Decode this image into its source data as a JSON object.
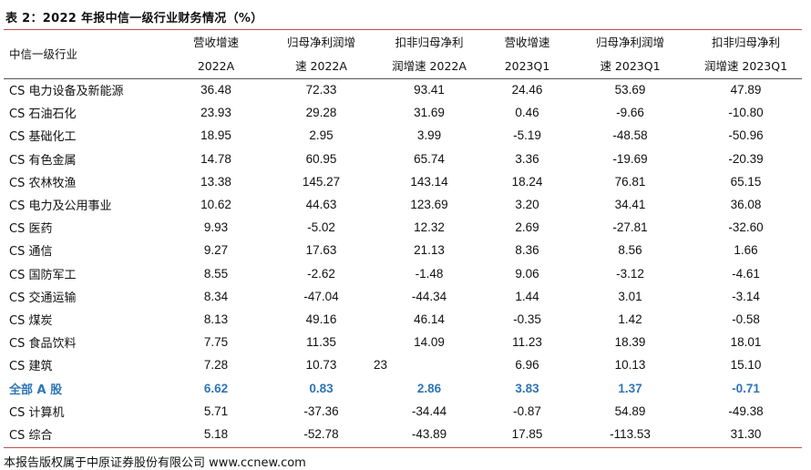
{
  "title": "表 2：2022 年报中信一级行业财务情况（%）",
  "header": {
    "row_label": "中信一级行业",
    "columns": [
      {
        "line1": "营收增速",
        "line2": "2022A"
      },
      {
        "line1": "归母净利润增",
        "line2": "速 2022A"
      },
      {
        "line1": "扣非归母净利",
        "line2": "润增速 2022A"
      },
      {
        "line1": "营收增速",
        "line2": "2023Q1"
      },
      {
        "line1": "归母净利润增",
        "line2": "速 2023Q1"
      },
      {
        "line1": "扣非归母净利",
        "line2": "润增速 2023Q1"
      }
    ]
  },
  "rows": [
    {
      "name": "CS 电力设备及新能源",
      "values": [
        "36.48",
        "72.33",
        "93.41",
        "24.46",
        "53.69",
        "47.89"
      ]
    },
    {
      "name": "CS 石油石化",
      "values": [
        "23.93",
        "29.28",
        "31.69",
        "0.46",
        "-9.66",
        "-10.80"
      ]
    },
    {
      "name": "CS 基础化工",
      "values": [
        "18.95",
        "2.95",
        "3.99",
        "-5.19",
        "-48.58",
        "-50.96"
      ]
    },
    {
      "name": "CS 有色金属",
      "values": [
        "14.78",
        "60.95",
        "65.74",
        "3.36",
        "-19.69",
        "-20.39"
      ]
    },
    {
      "name": "CS 农林牧渔",
      "values": [
        "13.38",
        "145.27",
        "143.14",
        "18.24",
        "76.81",
        "65.15"
      ]
    },
    {
      "name": "CS 电力及公用事业",
      "values": [
        "10.62",
        "44.63",
        "123.69",
        "3.20",
        "34.41",
        "36.08"
      ]
    },
    {
      "name": "CS 医药",
      "values": [
        "9.93",
        "-5.02",
        "12.32",
        "2.69",
        "-27.81",
        "-32.60"
      ]
    },
    {
      "name": "CS 通信",
      "values": [
        "9.27",
        "17.63",
        "21.13",
        "8.36",
        "8.56",
        "1.66"
      ]
    },
    {
      "name": "CS 国防军工",
      "values": [
        "8.55",
        "-2.62",
        "-1.48",
        "9.06",
        "-3.12",
        "-4.61"
      ]
    },
    {
      "name": "CS 交通运输",
      "values": [
        "8.34",
        "-47.04",
        "-44.34",
        "1.44",
        "3.01",
        "-3.14"
      ]
    },
    {
      "name": "CS 煤炭",
      "values": [
        "8.13",
        "49.16",
        "46.14",
        "-0.35",
        "1.42",
        "-0.58"
      ]
    },
    {
      "name": "CS 食品饮料",
      "values": [
        "7.75",
        "11.35",
        "14.09",
        "11.23",
        "18.39",
        "18.01"
      ]
    },
    {
      "name": "CS 建筑",
      "values": [
        "7.28",
        "10.73",
        "",
        "6.96",
        "10.13",
        "15.10"
      ],
      "stray": "23"
    },
    {
      "name": "全部 A 股",
      "values": [
        "6.62",
        "0.83",
        "2.86",
        "3.83",
        "1.37",
        "-0.71"
      ],
      "highlight": true
    },
    {
      "name": "CS 计算机",
      "values": [
        "5.71",
        "-37.36",
        "-34.44",
        "-0.87",
        "54.89",
        "-49.38"
      ]
    },
    {
      "name": "CS 综合",
      "values": [
        "5.18",
        "-52.78",
        "-43.89",
        "17.85",
        "-113.53",
        "31.30"
      ]
    }
  ],
  "footer": "本报告版权属于中原证券股份有限公司    www.ccnew.com"
}
